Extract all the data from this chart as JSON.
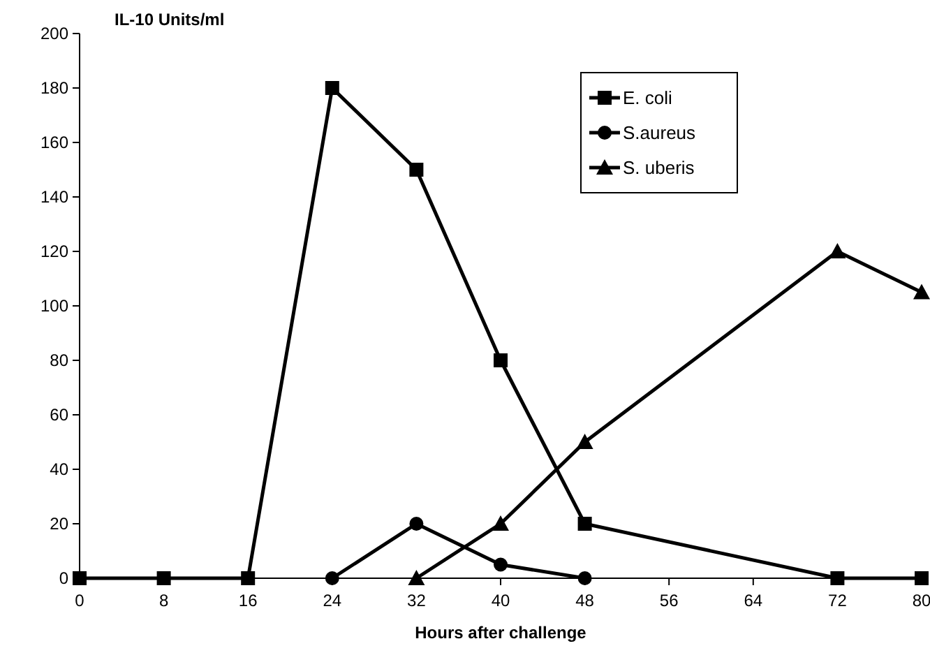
{
  "chart_data": {
    "type": "line",
    "ylabel": "IL-10 Units/ml",
    "xlabel": "Hours after challenge",
    "xlim": [
      0,
      80
    ],
    "xticks": [
      0,
      8,
      16,
      24,
      32,
      40,
      48,
      56,
      64,
      72,
      80
    ],
    "ylim": [
      0,
      200
    ],
    "yticks": [
      0,
      20,
      40,
      60,
      80,
      100,
      120,
      140,
      160,
      180,
      200
    ],
    "grid": false,
    "legend": "top right",
    "line_style": "solid",
    "series": [
      {
        "name": "E. coli",
        "color": "#000000",
        "marker": "square",
        "x": [
          0,
          8,
          16,
          24,
          32,
          40,
          48,
          72,
          80
        ],
        "values": [
          0,
          0,
          0,
          180,
          150,
          80,
          20,
          0,
          0
        ]
      },
      {
        "name": "S.aureus",
        "color": "#000000",
        "marker": "circle",
        "x": [
          24,
          32,
          40,
          48
        ],
        "values": [
          0,
          20,
          5,
          0
        ]
      },
      {
        "name": "S. uberis",
        "color": "#000000",
        "marker": "triangle",
        "x": [
          32,
          40,
          48,
          72,
          80
        ],
        "values": [
          0,
          20,
          50,
          120,
          105
        ]
      }
    ]
  }
}
